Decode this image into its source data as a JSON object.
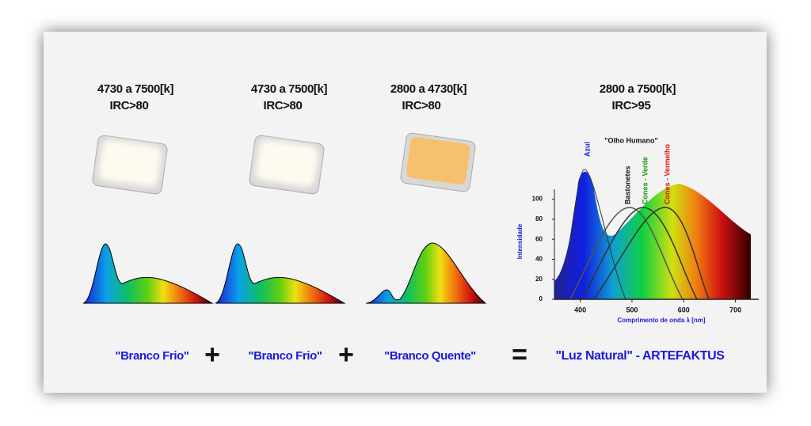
{
  "columns": [
    {
      "temperature": "4730 a 7500[k]",
      "irc": "IRC>80",
      "label": "\"Branco Frio\""
    },
    {
      "temperature": "4730 a 7500[k]",
      "irc": "IRC>80",
      "label": "\"Branco Frio\""
    },
    {
      "temperature": "2800 a 4730[k]",
      "irc": "IRC>80",
      "label": "\"Branco Quente\""
    },
    {
      "temperature": "2800 a 7500[k]",
      "irc": "IRC>95",
      "label": "\"Luz Natural\" - ARTEFAKTUS"
    }
  ],
  "operators": [
    "+",
    "+",
    "="
  ],
  "spectrum": {
    "title": "\"Olho Humano\"",
    "xlabel": "Comprimento de onda λ [nm]",
    "ylabel": "Intensidade",
    "curves": [
      "Azul",
      "Bastonetes",
      "Cones - Verde",
      "Cones - Vermelho"
    ],
    "xlim": [
      350,
      745
    ],
    "ylim": [
      0,
      110
    ],
    "xticks": [
      400,
      500,
      600,
      700
    ],
    "yticks": [
      0,
      20,
      40,
      60,
      80,
      100
    ]
  }
}
